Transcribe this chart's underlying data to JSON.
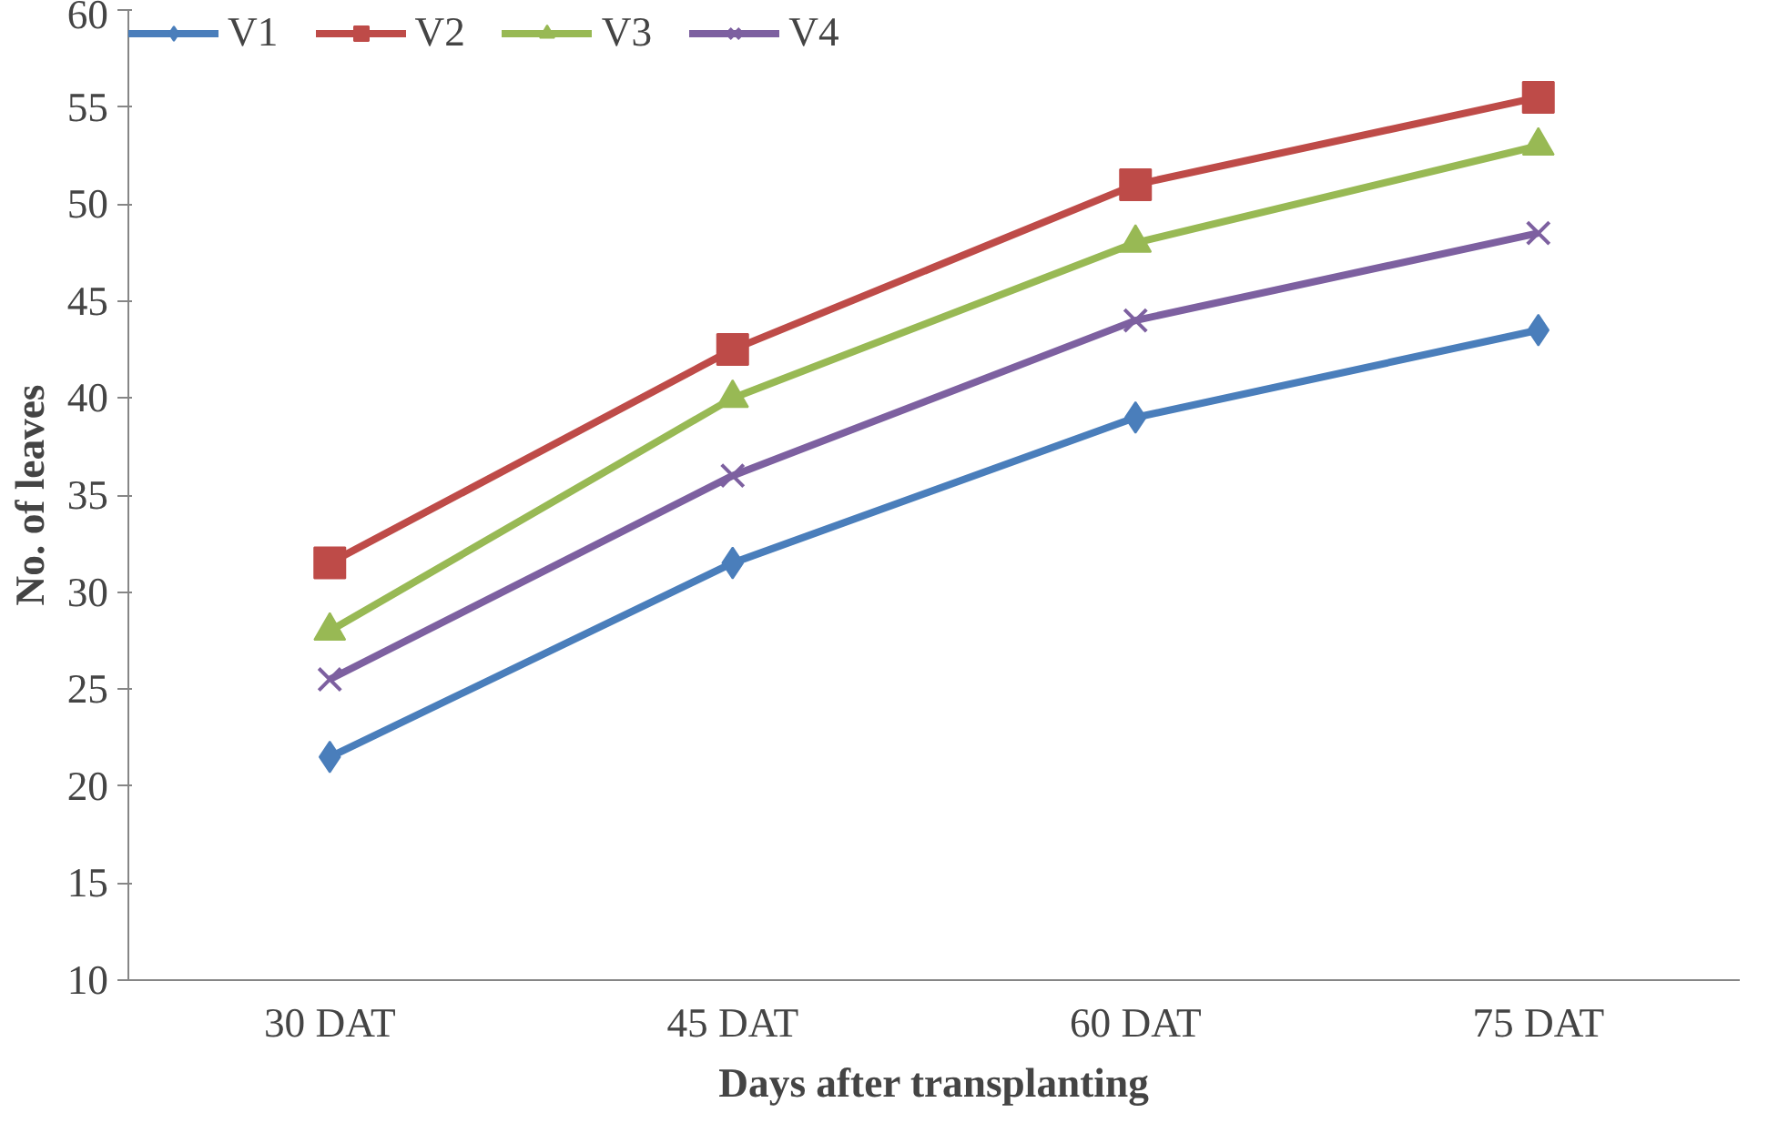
{
  "chart_data": {
    "type": "line",
    "xlabel": "Days after transplanting",
    "ylabel": "No. of leaves",
    "categories": [
      "30 DAT",
      "45 DAT",
      "60 DAT",
      "75 DAT"
    ],
    "series": [
      {
        "name": "V1",
        "color": "#4a7ebb",
        "marker": "diamond",
        "values": [
          21.5,
          31.5,
          39,
          43.5
        ]
      },
      {
        "name": "V2",
        "color": "#be4b48",
        "marker": "square",
        "values": [
          31.5,
          42.5,
          51,
          55.5
        ]
      },
      {
        "name": "V3",
        "color": "#98b954",
        "marker": "triangle",
        "values": [
          28,
          40,
          48,
          53
        ]
      },
      {
        "name": "V4",
        "color": "#7d60a0",
        "marker": "cross",
        "values": [
          25.5,
          36,
          44,
          48.5
        ]
      }
    ],
    "ylim": [
      10,
      60
    ],
    "yticks": [
      10,
      15,
      20,
      25,
      30,
      35,
      40,
      45,
      50,
      55,
      60
    ],
    "grid": false,
    "legend": "top",
    "line_style": "solid"
  }
}
